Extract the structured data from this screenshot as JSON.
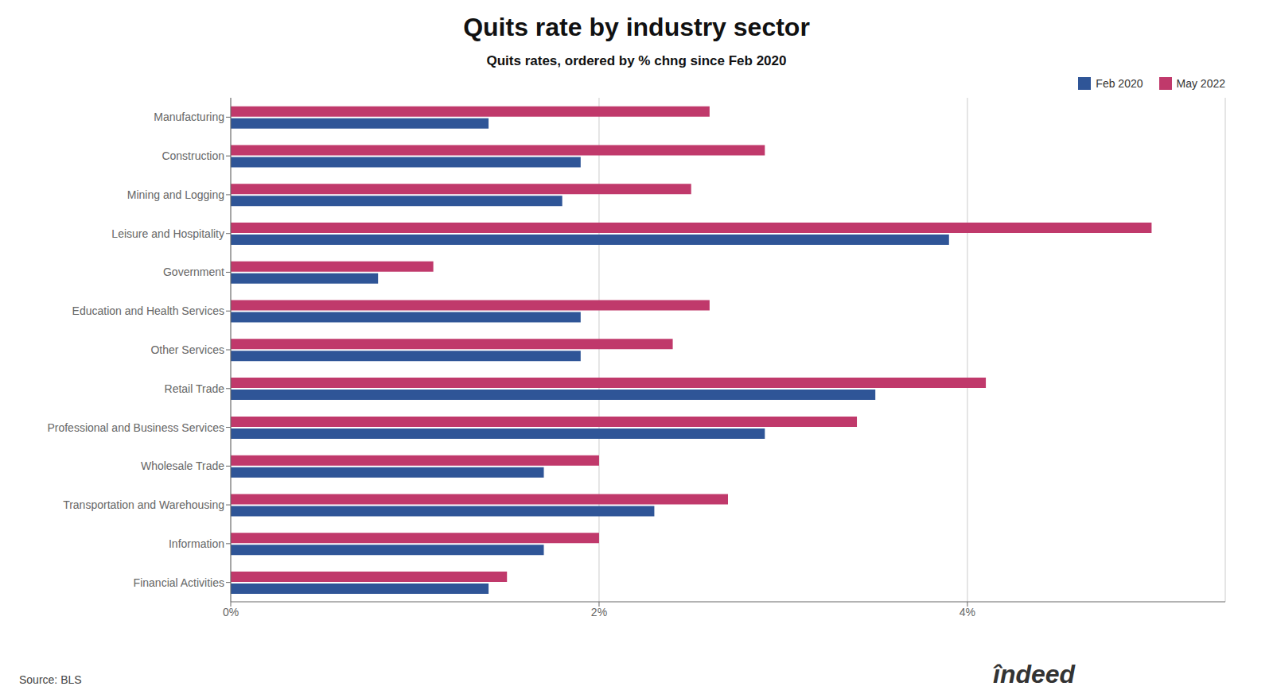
{
  "chart_data": {
    "type": "bar",
    "orientation": "horizontal",
    "title": "Quits rate by industry sector",
    "subtitle": "Quits rates, ordered by % chng since Feb 2020",
    "annotations": [
      "Source: BLS",
      "îndeed"
    ],
    "categories": [
      "Manufacturing",
      "Construction",
      "Mining and Logging",
      "Leisure and Hospitality",
      "Government",
      "Education and Health Services",
      "Other Services",
      "Retail Trade",
      "Professional and Business Services",
      "Wholesale Trade",
      "Transportation and Warehousing",
      "Information",
      "Financial Activities"
    ],
    "series": [
      {
        "name": "Feb 2020",
        "color": "#2f5597",
        "values": [
          1.4,
          1.9,
          1.8,
          3.9,
          0.8,
          1.9,
          1.9,
          3.5,
          2.9,
          1.7,
          2.3,
          1.7,
          1.4
        ]
      },
      {
        "name": "May 2022",
        "color": "#c0396b",
        "values": [
          2.6,
          2.9,
          2.5,
          5.0,
          1.1,
          2.6,
          2.4,
          4.1,
          3.4,
          2.0,
          2.7,
          2.0,
          1.5
        ]
      }
    ],
    "xlim": [
      0,
      5.4
    ],
    "xticks": [
      {
        "value": 0,
        "label": "0%"
      },
      {
        "value": 2,
        "label": "2%"
      },
      {
        "value": 4,
        "label": "4%"
      }
    ],
    "grid": true,
    "legend": "top-right"
  }
}
